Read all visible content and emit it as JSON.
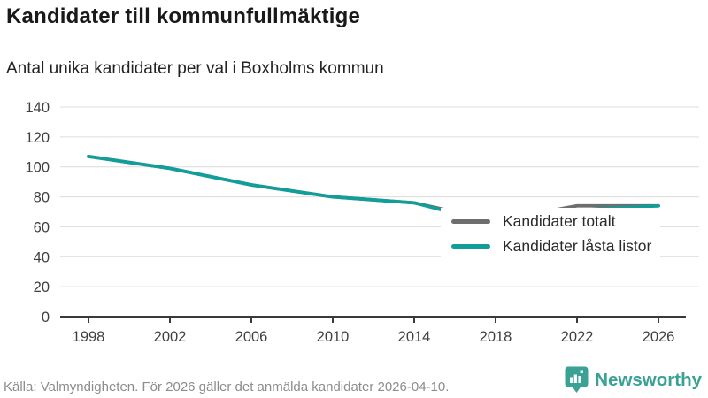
{
  "header": {
    "title": "Kandidater till kommunfullmäktige",
    "subtitle": "Antal unika kandidater per val i Boxholms kommun"
  },
  "chart_data": {
    "type": "line",
    "title": "Kandidater till kommunfullmäktige",
    "subtitle": "Antal unika kandidater per val i Boxholms kommun",
    "categories": [
      "1998",
      "2002",
      "2006",
      "2010",
      "2014",
      "2018",
      "2022",
      "2026"
    ],
    "series": [
      {
        "name": "Kandidater totalt",
        "color": "#6e6e6e",
        "values": [
          107,
          99,
          88,
          80,
          76,
          64,
          74,
          74
        ]
      },
      {
        "name": "Kandidater låsta listor",
        "color": "#119e9a",
        "values": [
          107,
          99,
          88,
          80,
          76,
          62,
          71,
          74
        ]
      }
    ],
    "xlabel": "",
    "ylabel": "",
    "ylim": [
      0,
      140
    ],
    "yticks": [
      0,
      20,
      40,
      60,
      80,
      100,
      120,
      140
    ],
    "grid": true,
    "legend_position": "top-right",
    "gridline_color": "#dcdcdc",
    "axis_color": "#3a3a3a",
    "tick_label_color": "#3f3f3f"
  },
  "footer": {
    "source": "Källa: Valmyndigheten. För 2026 gäller det anmälda kandidater 2026-04-10.",
    "logo_text": "Newsworthy"
  },
  "colors": {
    "accent_teal": "#119e9a",
    "series_gray": "#6e6e6e",
    "logo_teal": "#39a294"
  }
}
